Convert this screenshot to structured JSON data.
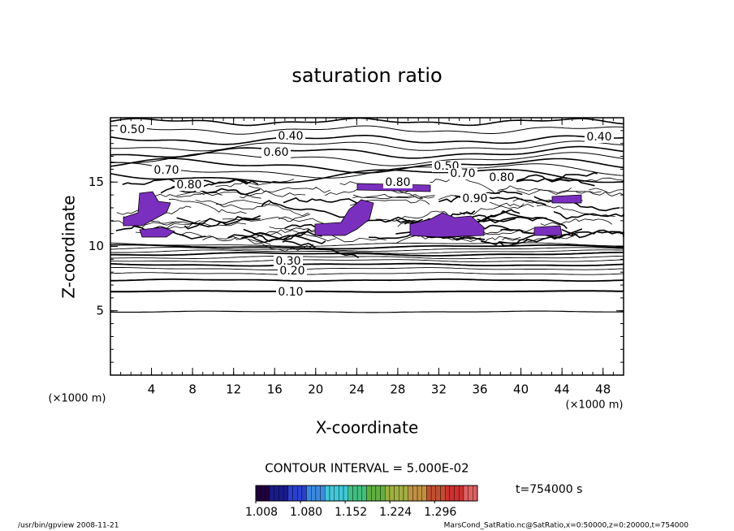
{
  "chart_data": {
    "type": "contour",
    "title": "saturation ratio",
    "xlabel": "X-coordinate",
    "ylabel": "Z-coordinate",
    "x_unit": "(×1000 m)",
    "y_unit": "(×1000 m)",
    "xlim": [
      0,
      50
    ],
    "ylim": [
      0,
      20
    ],
    "xticks": [
      4,
      8,
      12,
      16,
      20,
      24,
      28,
      32,
      36,
      40,
      44,
      48
    ],
    "yticks": [
      5,
      10,
      15
    ],
    "contour_interval": "CONTOUR INTERVAL = 5.000E-02",
    "contour_labels": [
      {
        "value": 0.5,
        "label": "0.50"
      },
      {
        "value": 0.4,
        "label": "0.40"
      },
      {
        "value": 0.4,
        "label": "0.40"
      },
      {
        "value": 0.6,
        "label": "0.60"
      },
      {
        "value": 0.7,
        "label": "0.70"
      },
      {
        "value": 0.5,
        "label": "0.50"
      },
      {
        "value": 0.7,
        "label": "0.70"
      },
      {
        "value": 0.8,
        "label": "0.80"
      },
      {
        "value": 0.8,
        "label": "0.80"
      },
      {
        "value": 0.8,
        "label": "0.80"
      },
      {
        "value": 0.9,
        "label": "0.90"
      },
      {
        "value": 0.3,
        "label": "0.30"
      },
      {
        "value": 0.2,
        "label": "0.20"
      },
      {
        "value": 0.1,
        "label": "0.10"
      }
    ],
    "clim": [
      1.008,
      1.365
    ],
    "cticks": [
      {
        "value": 1.008,
        "label": "1.008"
      },
      {
        "value": 1.08,
        "label": "1.080"
      },
      {
        "value": 1.152,
        "label": "1.152"
      },
      {
        "value": 1.224,
        "label": "1.224"
      },
      {
        "value": 1.296,
        "label": "1.296"
      }
    ],
    "colormap": [
      "#200040",
      "#1a1a8c",
      "#2a3fd0",
      "#3a8ae0",
      "#40c8d8",
      "#40c080",
      "#60b040",
      "#a0b040",
      "#c09040",
      "#c05030",
      "#d03030",
      "#e06060"
    ],
    "fill_color": "#7b2fbe",
    "time": "t=754000 s",
    "footer_left": "/usr/bin/gpview   2008-11-21",
    "footer_right": "MarsCond_SatRatio.nc@SatRatio,x=0:50000,z=0:20000,t=754000"
  }
}
